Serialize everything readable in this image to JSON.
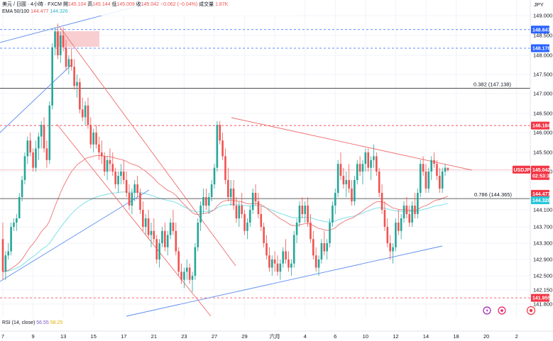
{
  "header": {
    "line1_symbol": "美元 / 日圓 · 4小時 · FXCM",
    "open_label": "開",
    "open_value": "145.104",
    "high_label": "高",
    "high_value": "145.144",
    "low_label": "低",
    "low_value": "145.009",
    "close_label": "收",
    "close_value": "145.042",
    "change_value": "−0.062 (−0.04%)",
    "volume_label": "成交量",
    "volume_value": "1.87K",
    "ema_label": "EMA 50/100",
    "ema50_value": "144.477",
    "ema100_value": "144.326"
  },
  "currency_label": "JPY",
  "colors": {
    "up": "#26a69a",
    "down": "#ef5350",
    "ema50": "#f08080",
    "ema100": "#7fe0e8",
    "blue_line": "#5b8def",
    "blue_tag": "#2962ff",
    "red_tag": "#f23645",
    "grid": "#f0f3fa",
    "black_line": "#333333",
    "fib": "#787b86",
    "rsi_value": "#7e57c2",
    "rsi_ma": "#f0c419"
  },
  "chart_data": {
    "type": "candlestick",
    "y_axis": {
      "range": [
        141.6,
        149.3
      ],
      "ticks": [
        "149.000",
        "148.500",
        "148.000",
        "147.500",
        "147.000",
        "146.500",
        "146.000",
        "145.500",
        "145.000",
        "144.100",
        "143.700",
        "143.300",
        "142.900",
        "142.500",
        "142.150",
        "141.800"
      ],
      "tick_values": [
        149.0,
        148.5,
        148.0,
        147.5,
        147.0,
        146.5,
        146.0,
        145.5,
        145.0,
        144.1,
        143.7,
        143.3,
        142.9,
        142.5,
        142.15,
        141.8
      ]
    },
    "x_axis": {
      "labels": [
        "7",
        "9",
        "13",
        "15",
        "17",
        "21",
        "23",
        "27",
        "29",
        "六月",
        "4",
        "6",
        "10",
        "12",
        "14",
        "18",
        "20",
        "2"
      ],
      "label_bars": [
        0,
        11,
        22,
        33,
        44,
        55,
        66,
        77,
        88,
        99,
        110,
        121,
        132,
        143,
        154,
        165,
        176,
        187
      ]
    },
    "price_levels": [
      {
        "value": 148.647,
        "label": "148.647",
        "style": "dashed-blue"
      },
      {
        "value": 148.178,
        "label": "148.178",
        "style": "dashed-blue"
      },
      {
        "value": 146.184,
        "label": "146.184",
        "style": "dashed-red"
      },
      {
        "value": 141.955,
        "label": "141.955",
        "style": "dashed-red"
      }
    ],
    "last_price": {
      "symbol": "USDJPY",
      "value": 145.042,
      "label": "145.042",
      "countdown": "02:53:30"
    },
    "ema50_tag": {
      "value": 144.477,
      "label": "144.477"
    },
    "ema100_tag": {
      "value": 144.326,
      "label": "144.326"
    },
    "fib_levels": [
      {
        "value": 147.138,
        "label": "0.382 (147.138)"
      },
      {
        "value": 144.365,
        "label": "0.786 (144.365)"
      }
    ],
    "candles": [
      [
        143.4,
        143.8,
        142.4,
        142.6
      ],
      [
        142.6,
        143.1,
        142.4,
        143.0
      ],
      [
        143.0,
        143.3,
        142.9,
        143.1
      ],
      [
        143.1,
        143.8,
        143.0,
        143.7
      ],
      [
        143.7,
        143.9,
        143.6,
        143.8
      ],
      [
        143.8,
        144.0,
        143.6,
        143.9
      ],
      [
        143.9,
        144.5,
        143.9,
        144.4
      ],
      [
        144.4,
        144.9,
        144.3,
        144.8
      ],
      [
        144.8,
        145.5,
        144.7,
        145.4
      ],
      [
        145.4,
        145.9,
        145.2,
        145.8
      ],
      [
        145.8,
        146.0,
        145.4,
        145.5
      ],
      [
        145.5,
        145.6,
        145.0,
        145.1
      ],
      [
        145.1,
        145.8,
        145.0,
        145.6
      ],
      [
        145.6,
        146.0,
        145.3,
        145.9
      ],
      [
        145.9,
        146.3,
        145.6,
        146.2
      ],
      [
        146.2,
        146.4,
        145.5,
        145.6
      ],
      [
        145.6,
        145.8,
        145.1,
        145.3
      ],
      [
        145.3,
        146.8,
        145.2,
        146.7
      ],
      [
        146.7,
        148.3,
        146.6,
        148.2
      ],
      [
        148.2,
        148.7,
        148.0,
        148.6
      ],
      [
        148.6,
        148.8,
        147.9,
        148.0
      ],
      [
        148.0,
        148.6,
        147.8,
        148.5
      ],
      [
        148.5,
        148.7,
        148.1,
        148.2
      ],
      [
        148.2,
        148.4,
        147.6,
        147.7
      ],
      [
        147.7,
        148.0,
        147.5,
        147.9
      ],
      [
        147.9,
        148.2,
        147.6,
        147.7
      ],
      [
        147.7,
        147.9,
        147.1,
        147.2
      ],
      [
        147.2,
        147.5,
        146.9,
        147.3
      ],
      [
        147.3,
        147.4,
        146.5,
        146.6
      ],
      [
        146.6,
        146.9,
        146.3,
        146.4
      ],
      [
        146.4,
        146.8,
        146.2,
        146.7
      ],
      [
        146.7,
        146.9,
        146.1,
        146.2
      ],
      [
        146.2,
        146.4,
        145.6,
        145.7
      ],
      [
        145.7,
        146.1,
        145.5,
        146.0
      ],
      [
        146.0,
        146.2,
        145.6,
        145.7
      ],
      [
        145.7,
        145.9,
        145.3,
        145.5
      ],
      [
        145.5,
        145.8,
        145.2,
        145.4
      ],
      [
        145.4,
        145.5,
        144.9,
        145.0
      ],
      [
        145.0,
        145.4,
        144.8,
        145.3
      ],
      [
        145.3,
        145.6,
        145.0,
        145.2
      ],
      [
        145.2,
        145.5,
        144.9,
        145.0
      ],
      [
        145.0,
        145.1,
        144.6,
        144.7
      ],
      [
        144.7,
        145.0,
        144.5,
        144.9
      ],
      [
        144.9,
        145.2,
        144.7,
        145.0
      ],
      [
        145.0,
        145.3,
        144.7,
        144.8
      ],
      [
        144.8,
        145.0,
        144.4,
        144.5
      ],
      [
        144.5,
        144.7,
        144.1,
        144.2
      ],
      [
        144.2,
        144.6,
        144.0,
        144.5
      ],
      [
        144.5,
        144.8,
        144.3,
        144.7
      ],
      [
        144.7,
        144.9,
        144.4,
        144.5
      ],
      [
        144.5,
        144.6,
        144.0,
        144.1
      ],
      [
        144.1,
        144.3,
        143.6,
        143.7
      ],
      [
        143.7,
        144.0,
        143.5,
        143.9
      ],
      [
        143.9,
        144.1,
        143.4,
        143.5
      ],
      [
        143.5,
        143.8,
        143.2,
        143.6
      ],
      [
        143.6,
        143.9,
        143.3,
        143.4
      ],
      [
        143.4,
        143.5,
        142.8,
        142.9
      ],
      [
        142.9,
        143.4,
        142.7,
        143.3
      ],
      [
        143.3,
        143.7,
        143.2,
        143.6
      ],
      [
        143.6,
        143.8,
        143.1,
        143.2
      ],
      [
        143.2,
        143.6,
        143.0,
        143.5
      ],
      [
        143.5,
        143.9,
        143.4,
        143.8
      ],
      [
        143.8,
        144.1,
        143.5,
        143.6
      ],
      [
        143.6,
        143.8,
        143.0,
        143.1
      ],
      [
        143.1,
        143.2,
        142.5,
        142.6
      ],
      [
        142.6,
        142.8,
        142.3,
        142.4
      ],
      [
        142.4,
        142.7,
        142.2,
        142.6
      ],
      [
        142.6,
        142.9,
        142.4,
        142.7
      ],
      [
        142.7,
        142.8,
        142.3,
        142.4
      ],
      [
        142.4,
        142.6,
        142.1,
        142.5
      ],
      [
        142.5,
        143.3,
        142.4,
        143.2
      ],
      [
        143.2,
        143.9,
        143.1,
        143.8
      ],
      [
        143.8,
        144.3,
        143.6,
        144.2
      ],
      [
        144.2,
        144.6,
        144.0,
        144.4
      ],
      [
        144.4,
        144.6,
        144.1,
        144.2
      ],
      [
        144.2,
        144.5,
        144.0,
        144.4
      ],
      [
        144.4,
        144.8,
        144.3,
        144.7
      ],
      [
        144.7,
        145.2,
        144.6,
        145.1
      ],
      [
        145.1,
        146.3,
        145.0,
        146.2
      ],
      [
        146.2,
        146.3,
        145.7,
        145.8
      ],
      [
        145.8,
        146.0,
        145.3,
        145.4
      ],
      [
        145.4,
        145.6,
        144.7,
        144.8
      ],
      [
        144.8,
        145.1,
        144.3,
        144.4
      ],
      [
        144.4,
        144.8,
        144.2,
        144.6
      ],
      [
        144.6,
        144.8,
        144.1,
        144.2
      ],
      [
        144.2,
        144.4,
        143.8,
        143.9
      ],
      [
        143.9,
        144.3,
        143.7,
        144.2
      ],
      [
        144.2,
        144.5,
        143.9,
        144.0
      ],
      [
        144.0,
        144.1,
        143.5,
        143.6
      ],
      [
        143.6,
        143.9,
        143.4,
        143.8
      ],
      [
        143.8,
        144.2,
        143.7,
        144.1
      ],
      [
        144.1,
        144.6,
        144.0,
        144.5
      ],
      [
        144.5,
        144.7,
        144.2,
        144.3
      ],
      [
        144.3,
        144.5,
        143.9,
        144.0
      ],
      [
        144.0,
        144.2,
        143.6,
        143.7
      ],
      [
        143.7,
        143.8,
        143.2,
        143.3
      ],
      [
        143.3,
        143.5,
        142.9,
        143.0
      ],
      [
        143.0,
        143.2,
        142.6,
        142.7
      ],
      [
        142.7,
        143.0,
        142.5,
        142.9
      ],
      [
        142.9,
        143.1,
        142.6,
        142.8
      ],
      [
        142.8,
        143.0,
        142.5,
        142.6
      ],
      [
        142.6,
        142.9,
        142.4,
        142.8
      ],
      [
        142.8,
        143.2,
        142.7,
        143.1
      ],
      [
        143.1,
        143.4,
        142.8,
        142.9
      ],
      [
        142.9,
        143.1,
        142.6,
        142.7
      ],
      [
        142.7,
        142.9,
        142.5,
        142.8
      ],
      [
        142.8,
        143.6,
        142.7,
        143.5
      ],
      [
        143.5,
        143.9,
        143.3,
        143.8
      ],
      [
        143.8,
        144.3,
        143.7,
        144.2
      ],
      [
        144.2,
        144.4,
        143.9,
        144.0
      ],
      [
        144.0,
        144.3,
        143.8,
        144.2
      ],
      [
        144.2,
        144.4,
        143.7,
        143.8
      ],
      [
        143.8,
        144.0,
        143.3,
        143.4
      ],
      [
        143.4,
        143.6,
        142.9,
        143.0
      ],
      [
        143.0,
        143.2,
        142.6,
        142.7
      ],
      [
        142.7,
        143.0,
        142.5,
        142.9
      ],
      [
        142.9,
        143.4,
        142.8,
        143.3
      ],
      [
        143.3,
        143.6,
        143.0,
        143.1
      ],
      [
        143.1,
        143.4,
        142.9,
        143.3
      ],
      [
        143.3,
        143.9,
        143.2,
        143.8
      ],
      [
        143.8,
        144.3,
        143.7,
        144.2
      ],
      [
        144.2,
        144.6,
        144.0,
        144.5
      ],
      [
        144.5,
        145.3,
        144.4,
        145.2
      ],
      [
        145.2,
        145.5,
        144.8,
        144.9
      ],
      [
        144.9,
        145.1,
        144.6,
        144.7
      ],
      [
        144.7,
        145.0,
        144.4,
        144.8
      ],
      [
        144.8,
        145.2,
        144.5,
        144.6
      ],
      [
        144.6,
        144.8,
        144.2,
        144.3
      ],
      [
        144.3,
        144.9,
        144.2,
        144.8
      ],
      [
        144.8,
        145.3,
        144.7,
        145.2
      ],
      [
        145.2,
        145.4,
        144.9,
        145.0
      ],
      [
        145.0,
        145.3,
        144.7,
        145.2
      ],
      [
        145.2,
        145.6,
        145.0,
        145.5
      ],
      [
        145.5,
        145.6,
        145.0,
        145.1
      ],
      [
        145.1,
        145.4,
        144.8,
        145.3
      ],
      [
        145.3,
        145.7,
        145.1,
        145.4
      ],
      [
        145.4,
        145.5,
        144.9,
        145.0
      ],
      [
        145.0,
        145.1,
        144.4,
        144.5
      ],
      [
        144.5,
        144.7,
        144.0,
        144.1
      ],
      [
        144.1,
        144.3,
        143.6,
        143.7
      ],
      [
        143.7,
        143.9,
        143.2,
        143.3
      ],
      [
        143.3,
        143.5,
        142.9,
        143.1
      ],
      [
        143.1,
        143.3,
        142.8,
        143.2
      ],
      [
        143.2,
        143.9,
        143.1,
        143.8
      ],
      [
        143.8,
        144.1,
        143.5,
        143.6
      ],
      [
        143.6,
        144.0,
        143.4,
        143.9
      ],
      [
        143.9,
        144.3,
        143.8,
        144.2
      ],
      [
        144.2,
        144.4,
        143.9,
        144.0
      ],
      [
        144.0,
        144.2,
        143.7,
        143.8
      ],
      [
        143.8,
        144.3,
        143.7,
        144.2
      ],
      [
        144.2,
        144.5,
        143.9,
        144.0
      ],
      [
        144.0,
        144.6,
        143.9,
        144.5
      ],
      [
        144.5,
        145.3,
        144.4,
        145.2
      ],
      [
        145.2,
        145.4,
        144.9,
        145.0
      ],
      [
        145.0,
        145.2,
        144.5,
        144.6
      ],
      [
        144.6,
        145.1,
        144.5,
        145.0
      ],
      [
        145.0,
        145.4,
        144.8,
        145.3
      ],
      [
        145.3,
        145.5,
        145.1,
        145.2
      ],
      [
        145.2,
        145.3,
        144.8,
        144.9
      ],
      [
        144.9,
        145.1,
        144.5,
        144.6
      ],
      [
        144.6,
        145.1,
        144.5,
        145.0
      ],
      [
        145.0,
        145.2,
        144.9,
        145.1
      ],
      [
        145.1,
        145.1,
        145.0,
        145.04
      ]
    ],
    "subpanel": {
      "name": "RSI (14, close)",
      "value": "56.55",
      "ma": "58.25"
    }
  }
}
